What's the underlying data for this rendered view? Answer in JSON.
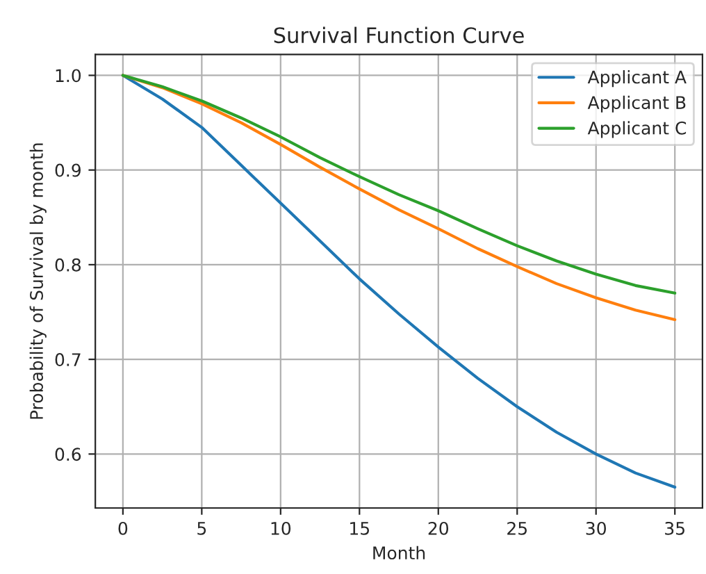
{
  "chart_data": {
    "type": "line",
    "title": "Survival Function Curve",
    "xlabel": "Month",
    "ylabel": "Probability of Survival by month",
    "x": [
      0,
      2.5,
      5,
      7.5,
      10,
      12.5,
      15,
      17.5,
      20,
      22.5,
      25,
      27.5,
      30,
      32.5,
      35
    ],
    "series": [
      {
        "name": "Applicant A",
        "color": "#1f77b4",
        "values": [
          1.0,
          0.975,
          0.945,
          0.905,
          0.865,
          0.825,
          0.785,
          0.748,
          0.713,
          0.68,
          0.65,
          0.623,
          0.6,
          0.58,
          0.565
        ]
      },
      {
        "name": "Applicant B",
        "color": "#ff7f0e",
        "values": [
          1.0,
          0.987,
          0.97,
          0.95,
          0.927,
          0.903,
          0.88,
          0.858,
          0.838,
          0.817,
          0.798,
          0.78,
          0.765,
          0.752,
          0.742
        ]
      },
      {
        "name": "Applicant C",
        "color": "#2ca02c",
        "values": [
          1.0,
          0.988,
          0.973,
          0.955,
          0.935,
          0.913,
          0.893,
          0.874,
          0.857,
          0.838,
          0.82,
          0.804,
          0.79,
          0.778,
          0.77
        ]
      }
    ],
    "xlim": [
      -1.75,
      36.75
    ],
    "ylim": [
      0.543,
      1.022
    ],
    "xticks": [
      0,
      5,
      10,
      15,
      20,
      25,
      30,
      35
    ],
    "yticks": [
      0.6,
      0.7,
      0.8,
      0.9,
      {
        "value": 1,
        "label": "1.0"
      }
    ],
    "grid": true,
    "legend": "top right",
    "line_style": "solid",
    "marker": "none"
  }
}
